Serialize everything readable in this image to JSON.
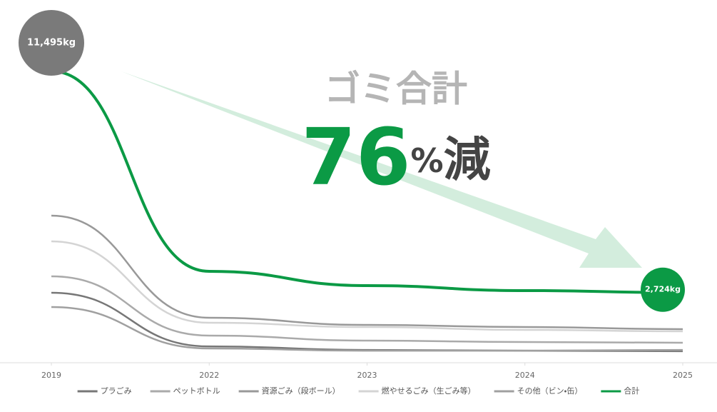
{
  "chart_data": {
    "type": "line",
    "headline": "ゴミ合計",
    "reduction": {
      "number": "76",
      "unit": "%",
      "suffix": "減"
    },
    "categories": [
      "2019",
      "2022",
      "2023",
      "2024",
      "2025"
    ],
    "series": [
      {
        "name": "プラごみ",
        "color": "#777777",
        "values": [
          2717,
          590,
          450,
          420,
          400
        ]
      },
      {
        "name": "ペットボトル",
        "color": "#aaaaaa",
        "values": [
          3368,
          1019,
          821,
          764,
          736
        ]
      },
      {
        "name": "資源ごみ（段ボール）",
        "color": "#999999",
        "values": [
          5773,
          1726,
          1443,
          1358,
          1274
        ]
      },
      {
        "name": "燃やせるごみ（生ごみ等）",
        "color": "#d4d4d4",
        "values": [
          4754,
          1528,
          1358,
          1245,
          1189
        ]
      },
      {
        "name": "その他（ビン・缶）",
        "color": "#a0a0a0",
        "values": [
          2150,
          510,
          420,
          420,
          450
        ]
      },
      {
        "name": "合計",
        "color": "#0b9a45",
        "values": [
          11495,
          3566,
          3000,
          2802,
          2724
        ],
        "value_labels": [
          "11,495kg",
          null,
          null,
          null,
          "2,724kg"
        ]
      }
    ]
  }
}
